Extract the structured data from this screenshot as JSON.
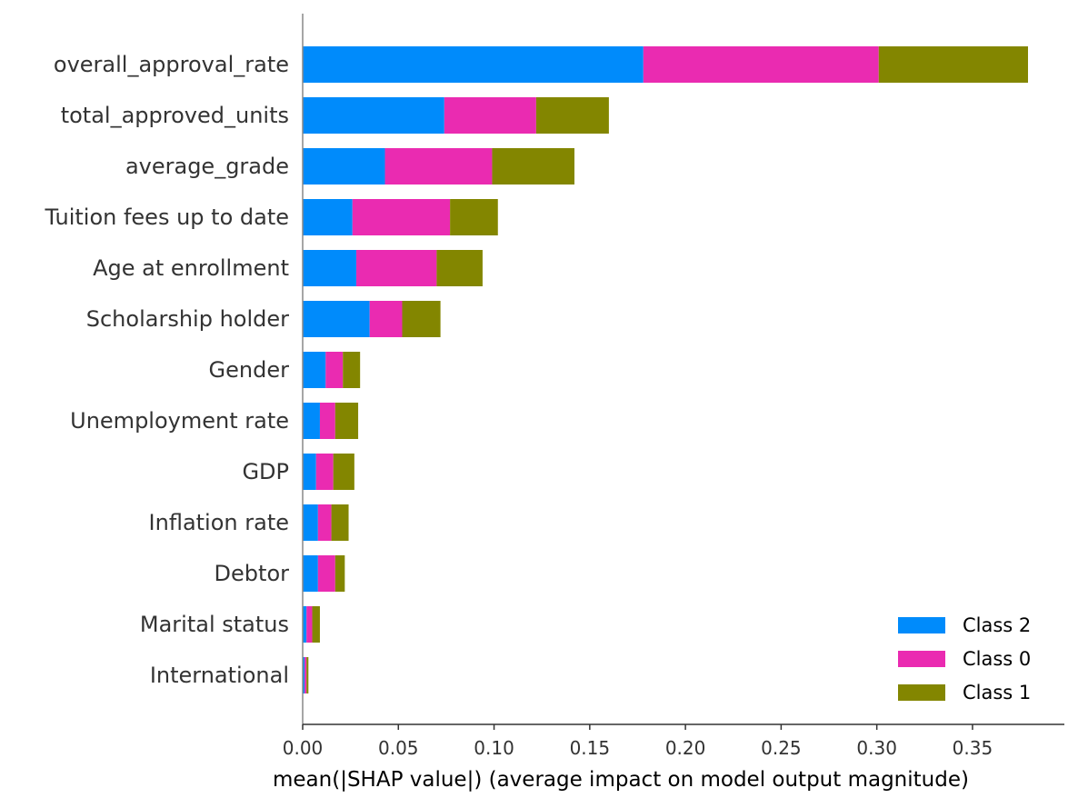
{
  "chart_data": {
    "type": "bar",
    "orientation": "horizontal",
    "stacked": true,
    "title": "",
    "xlabel": "mean(|SHAP value|) (average impact on model output magnitude)",
    "ylabel": "",
    "xlim": [
      0,
      0.398
    ],
    "xticks": [
      "0.00",
      "0.05",
      "0.10",
      "0.15",
      "0.20",
      "0.25",
      "0.30",
      "0.35"
    ],
    "xtick_values": [
      0,
      0.05,
      0.1,
      0.15,
      0.2,
      0.25,
      0.3,
      0.35
    ],
    "grid": false,
    "legend_position": "bottom-right",
    "categories": [
      "overall_approval_rate",
      "total_approved_units",
      "average_grade",
      "Tuition fees up to date",
      "Age at enrollment",
      "Scholarship holder",
      "Gender",
      "Unemployment rate",
      "GDP",
      "Inflation rate",
      "Debtor",
      "Marital status",
      "International"
    ],
    "series": [
      {
        "name": "Class 2",
        "color": "#008bfb",
        "values": [
          0.178,
          0.074,
          0.043,
          0.026,
          0.028,
          0.035,
          0.012,
          0.009,
          0.007,
          0.008,
          0.008,
          0.002,
          0.001
        ]
      },
      {
        "name": "Class 0",
        "color": "#ea2bb1",
        "values": [
          0.123,
          0.048,
          0.056,
          0.051,
          0.042,
          0.017,
          0.009,
          0.008,
          0.009,
          0.007,
          0.009,
          0.003,
          0.001
        ]
      },
      {
        "name": "Class 1",
        "color": "#838600",
        "values": [
          0.078,
          0.038,
          0.043,
          0.025,
          0.024,
          0.02,
          0.009,
          0.012,
          0.011,
          0.009,
          0.005,
          0.004,
          0.001
        ]
      }
    ]
  }
}
